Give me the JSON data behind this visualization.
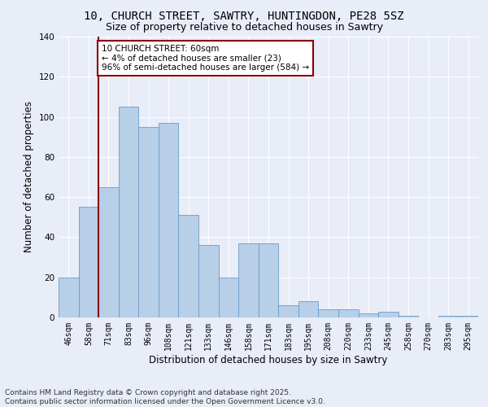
{
  "title_line1": "10, CHURCH STREET, SAWTRY, HUNTINGDON, PE28 5SZ",
  "title_line2": "Size of property relative to detached houses in Sawtry",
  "xlabel": "Distribution of detached houses by size in Sawtry",
  "ylabel": "Number of detached properties",
  "categories": [
    "46sqm",
    "58sqm",
    "71sqm",
    "83sqm",
    "96sqm",
    "108sqm",
    "121sqm",
    "133sqm",
    "146sqm",
    "158sqm",
    "171sqm",
    "183sqm",
    "195sqm",
    "208sqm",
    "220sqm",
    "233sqm",
    "245sqm",
    "258sqm",
    "270sqm",
    "283sqm",
    "295sqm"
  ],
  "values": [
    20,
    55,
    65,
    105,
    95,
    97,
    51,
    36,
    20,
    37,
    37,
    6,
    8,
    4,
    4,
    2,
    3,
    1,
    0,
    1,
    1
  ],
  "bar_color": "#b8cfe8",
  "bar_edge_color": "#6a9cc8",
  "vline_x_index": 1.5,
  "vline_color": "#8b0000",
  "annotation_line1": "10 CHURCH STREET: 60sqm",
  "annotation_line2": "← 4% of detached houses are smaller (23)",
  "annotation_line3": "96% of semi-detached houses are larger (584) →",
  "annotation_box_color": "#ffffff",
  "annotation_box_edge": "#8b0000",
  "ylim": [
    0,
    140
  ],
  "yticks": [
    0,
    20,
    40,
    60,
    80,
    100,
    120,
    140
  ],
  "footer_text": "Contains HM Land Registry data © Crown copyright and database right 2025.\nContains public sector information licensed under the Open Government Licence v3.0.",
  "bg_color": "#e8edf8",
  "plot_bg_color": "#e8edf8",
  "title_fontsize": 10,
  "subtitle_fontsize": 9,
  "tick_fontsize": 7,
  "axis_label_fontsize": 8.5,
  "footer_fontsize": 6.5
}
